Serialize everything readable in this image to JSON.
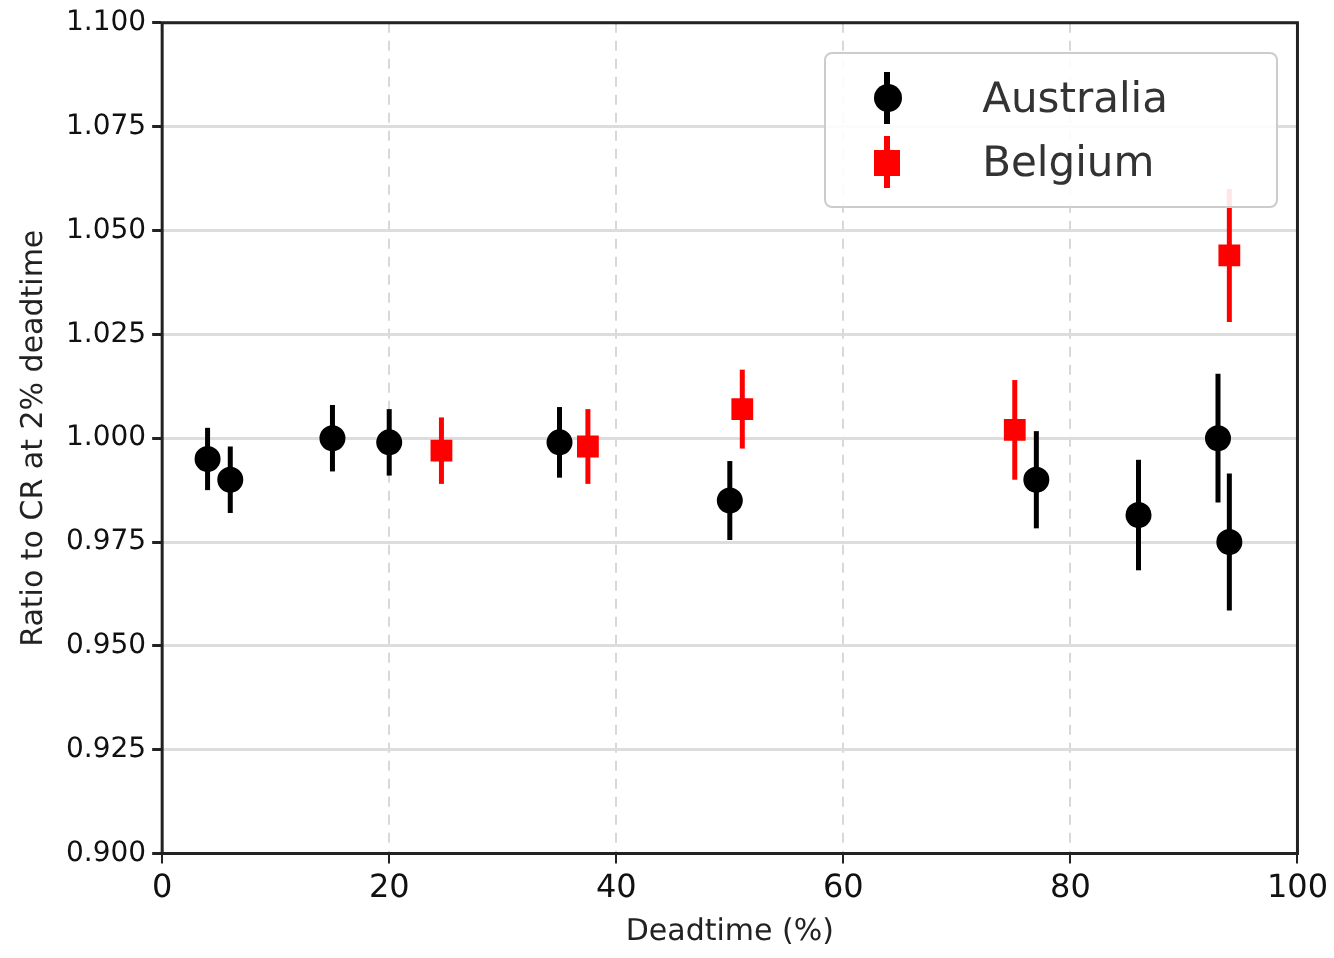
{
  "chart_data": {
    "type": "scatter",
    "xlabel": "Deadtime (%)",
    "ylabel": "Ratio to CR at 2% deadtime",
    "xlim": [
      0,
      100
    ],
    "xticks": [
      0,
      20,
      40,
      60,
      80,
      100
    ],
    "ylim": [
      0.9,
      1.1
    ],
    "yticks": [
      {
        "value": 0.9,
        "label": "0.900"
      },
      {
        "value": 0.925,
        "label": "0.925"
      },
      {
        "value": 0.95,
        "label": "0.950"
      },
      {
        "value": 0.975,
        "label": "0.975"
      },
      {
        "value": 1.0,
        "label": "1.000"
      },
      {
        "value": 1.025,
        "label": "1.025"
      },
      {
        "value": 1.05,
        "label": "1.050"
      },
      {
        "value": 1.075,
        "label": "1.075"
      },
      {
        "value": 1.1,
        "label": "1.100"
      }
    ],
    "grid": true,
    "legend": "top right",
    "series": [
      {
        "name": "Australia",
        "color": "#000000",
        "marker": "circle",
        "x": [
          4,
          6,
          15,
          20,
          35,
          50,
          77,
          86,
          93,
          94
        ],
        "values": [
          0.995,
          0.99,
          1.0,
          0.999,
          0.999,
          0.985,
          0.99,
          0.9815,
          1.0,
          0.975
        ],
        "errors": [
          0.0075,
          0.008,
          0.008,
          0.008,
          0.0085,
          0.0095,
          0.0117,
          0.0133,
          0.0155,
          0.0165
        ]
      },
      {
        "name": "Belgium",
        "color": "#ff0000",
        "marker": "square",
        "x": [
          24.6,
          37.5,
          51.1,
          75.1,
          94
        ],
        "values": [
          0.997,
          0.998,
          1.007,
          1.002,
          1.044
        ],
        "errors": [
          0.008,
          0.009,
          0.0095,
          0.012,
          0.016
        ]
      }
    ]
  }
}
